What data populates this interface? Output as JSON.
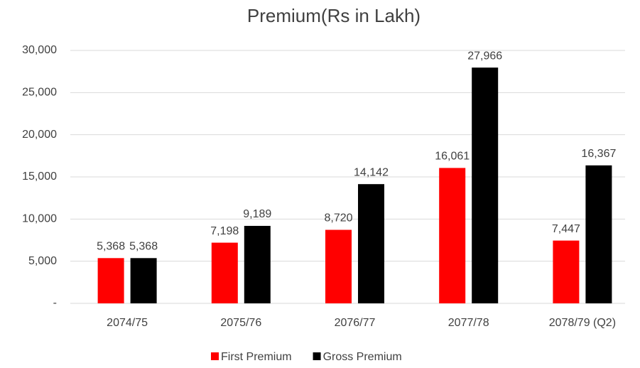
{
  "chart_data": {
    "type": "bar",
    "title": "Premium(Rs in Lakh)",
    "categories": [
      "2074/75",
      "2075/76",
      "2076/77",
      "2077/78",
      "2078/79 (Q2)"
    ],
    "series": [
      {
        "name": "First Premium",
        "color": "#ff0000",
        "values": [
          5368,
          7198,
          8720,
          16061,
          7447
        ],
        "value_labels": [
          "5,368",
          "7,198",
          "8,720",
          "16,061",
          "7,447"
        ]
      },
      {
        "name": "Gross Premium",
        "color": "#000000",
        "values": [
          5368,
          9189,
          14142,
          27966,
          16367
        ],
        "value_labels": [
          "5,368",
          "9,189",
          "14,142",
          "27,966",
          "16,367"
        ]
      }
    ],
    "ylim": [
      0,
      30000
    ],
    "yticks": [
      {
        "value": 0,
        "label": "-"
      },
      {
        "value": 5000,
        "label": "5,000"
      },
      {
        "value": 10000,
        "label": "10,000"
      },
      {
        "value": 15000,
        "label": "15,000"
      },
      {
        "value": 20000,
        "label": "20,000"
      },
      {
        "value": 25000,
        "label": "25,000"
      },
      {
        "value": 30000,
        "label": "30,000"
      }
    ],
    "grid": true,
    "legend": "bottom"
  }
}
